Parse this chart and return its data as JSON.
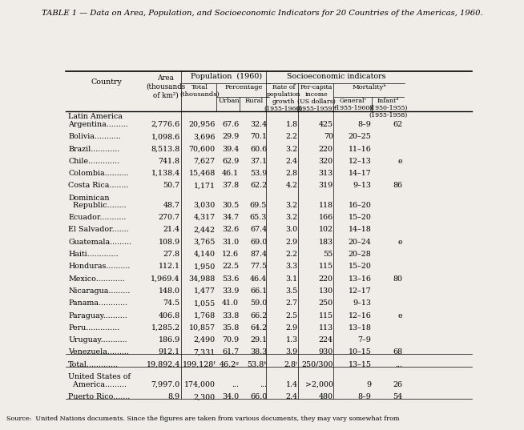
{
  "title": "TABLE 1 — Data on Area, Population, and Socioeconomic Indicators for 20 Countries of the Americas, 1960.",
  "rows": [
    {
      "country": "Latin America",
      "section_header": true
    },
    {
      "country": "Argentina.........",
      "area": "2,776.6",
      "total": "20,956",
      "urban": "67.6",
      "rural": "32.4",
      "rate": "1.8",
      "income": "425",
      "general": "8–9",
      "infant": "62"
    },
    {
      "country": "Bolivia...........",
      "area": "1,098.6",
      "total": "3,696",
      "urban": "29.9",
      "rural": "70.1",
      "rate": "2.2",
      "income": "70",
      "general": "20–25",
      "infant": ""
    },
    {
      "country": "Brazil............",
      "area": "8,513.8",
      "total": "70,600",
      "urban": "39.4",
      "rural": "60.6",
      "rate": "3.2",
      "income": "220",
      "general": "11–16",
      "infant": ""
    },
    {
      "country": "Chile.............",
      "area": "741.8",
      "total": "7,627",
      "urban": "62.9",
      "rural": "37.1",
      "rate": "2.4",
      "income": "320",
      "general": "12–13",
      "infant": "e"
    },
    {
      "country": "Colombia..........",
      "area": "1,138.4",
      "total": "15,468",
      "urban": "46.1",
      "rural": "53.9",
      "rate": "2.8",
      "income": "313",
      "general": "14–17",
      "infant": ""
    },
    {
      "country": "Costa Rica........",
      "area": "50.7",
      "total": "1,171",
      "urban": "37.8",
      "rural": "62.2",
      "rate": "4.2",
      "income": "319",
      "general": "9–13",
      "infant": "86"
    },
    {
      "country": "Dominican",
      "section_subheader": true
    },
    {
      "country": "  Republic........",
      "area": "48.7",
      "total": "3,030",
      "urban": "30.5",
      "rural": "69.5",
      "rate": "3.2",
      "income": "118",
      "general": "16–20",
      "infant": ""
    },
    {
      "country": "Ecuador...........",
      "area": "270.7",
      "total": "4,317",
      "urban": "34.7",
      "rural": "65.3",
      "rate": "3.2",
      "income": "166",
      "general": "15–20",
      "infant": ""
    },
    {
      "country": "El Salvador.......",
      "area": "21.4",
      "total": "2,442",
      "urban": "32.6",
      "rural": "67.4",
      "rate": "3.0",
      "income": "102",
      "general": "14–18",
      "infant": ""
    },
    {
      "country": "Guatemala.........",
      "area": "108.9",
      "total": "3,765",
      "urban": "31.0",
      "rural": "69.0",
      "rate": "2.9",
      "income": "183",
      "general": "20–24",
      "infant": "e"
    },
    {
      "country": "Haiti.............",
      "area": "27.8",
      "total": "4,140",
      "urban": "12.6",
      "rural": "87.4",
      "rate": "2.2",
      "income": "55",
      "general": "20–28",
      "infant": ""
    },
    {
      "country": "Honduras..........",
      "area": "112.1",
      "total": "1,950",
      "urban": "22.5",
      "rural": "77.5",
      "rate": "3.3",
      "income": "115",
      "general": "15–20",
      "infant": ""
    },
    {
      "country": "Mexico............",
      "area": "1,969.4",
      "total": "34,988",
      "urban": "53.6",
      "rural": "46.4",
      "rate": "3.1",
      "income": "220",
      "general": "13–16",
      "infant": "80"
    },
    {
      "country": "Nicaragua.........",
      "area": "148.0",
      "total": "1,477",
      "urban": "33.9",
      "rural": "66.1",
      "rate": "3.5",
      "income": "130",
      "general": "12–17",
      "infant": ""
    },
    {
      "country": "Panama............",
      "area": "74.5",
      "total": "1,055",
      "urban": "41.0",
      "rural": "59.0",
      "rate": "2.7",
      "income": "250",
      "general": "9–13",
      "infant": ""
    },
    {
      "country": "Paraguay..........",
      "area": "406.8",
      "total": "1,768",
      "urban": "33.8",
      "rural": "66.2",
      "rate": "2.5",
      "income": "115",
      "general": "12–16",
      "infant": "e"
    },
    {
      "country": "Peru..............",
      "area": "1,285.2",
      "total": "10,857",
      "urban": "35.8",
      "rural": "64.2",
      "rate": "2.9",
      "income": "113",
      "general": "13–18",
      "infant": ""
    },
    {
      "country": "Uruguay...........",
      "area": "186.9",
      "total": "2,490",
      "urban": "70.9",
      "rural": "29.1",
      "rate": "1.3",
      "income": "224",
      "general": "7–9",
      "infant": ""
    },
    {
      "country": "Venezuela.........",
      "area": "912.1",
      "total": "7,331",
      "urban": "61.7",
      "rural": "38.3",
      "rate": "3.9",
      "income": "930",
      "general": "10–15",
      "infant": "68"
    },
    {
      "country": "Total.............",
      "area": "19,892.4",
      "total": "199,128ᶠ",
      "urban": "46.2ᵍ",
      "rural": "53.8ʰ",
      "rate": "2.8ⁱ",
      "income": "250/300",
      "general": "13–15",
      "infant": "...",
      "is_total": true
    },
    {
      "country": "United States of",
      "section_header2": true
    },
    {
      "country": "  America.........",
      "area": "7,997.0",
      "total": "174,000",
      "urban": "...",
      "rural": "...",
      "rate": "1.4",
      "income": ">2,000",
      "general": "9",
      "infant": "26"
    },
    {
      "country": "Puerto Rico.......",
      "area": "8.9",
      "total": "2,300",
      "urban": "34.0",
      "rural": "66.0",
      "rate": "2.4",
      "income": "480",
      "general": "8–9",
      "infant": "54"
    }
  ],
  "footnote": "Source:  United Nations documents. Since the figures are taken from various documents, they may vary somewhat from",
  "bg_color": "#f0ede8",
  "text_color": "#000000",
  "title_fontsize": 7.2,
  "body_fontsize": 6.8,
  "header_fontsize": 6.8
}
